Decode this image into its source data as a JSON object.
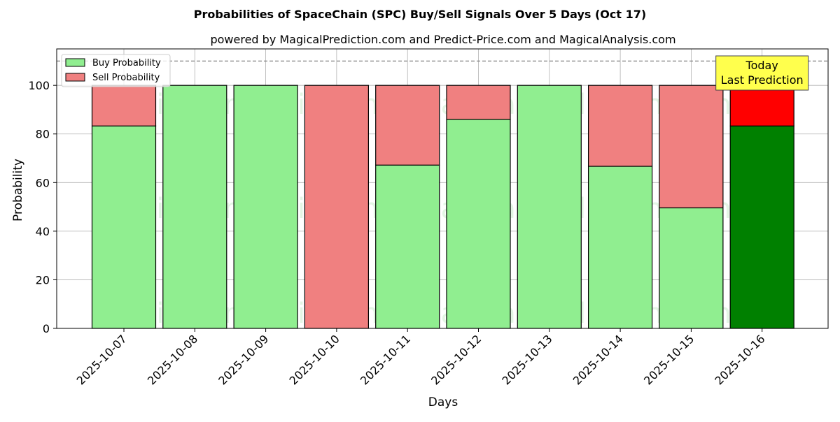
{
  "chart_data": {
    "type": "bar",
    "stacked": true,
    "title": "Probabilities of SpaceChain (SPC) Buy/Sell Signals Over 5 Days (Oct 17)",
    "subtitle": "powered by MagicalPrediction.com and Predict-Price.com and MagicalAnalysis.com",
    "xlabel": "Days",
    "ylabel": "Probability",
    "ylim": [
      0,
      115
    ],
    "yticks": [
      0,
      20,
      40,
      60,
      80,
      100
    ],
    "reference_line": 110,
    "grid": true,
    "legend_position": "top-left",
    "categories": [
      "2025-10-07",
      "2025-10-08",
      "2025-10-09",
      "2025-10-10",
      "2025-10-11",
      "2025-10-12",
      "2025-10-13",
      "2025-10-14",
      "2025-10-15",
      "2025-10-16"
    ],
    "series": [
      {
        "name": "Buy Probability",
        "color": "#90ee90",
        "values": [
          83.3,
          100,
          100,
          0,
          67.2,
          86.0,
          100,
          66.7,
          49.6,
          83.3
        ]
      },
      {
        "name": "Sell Probability",
        "color": "#f08080",
        "values": [
          16.7,
          0,
          0,
          100,
          32.8,
          14.0,
          0,
          33.3,
          50.4,
          16.7
        ]
      }
    ],
    "highlight": {
      "index": 9,
      "buy_color": "#008000",
      "sell_color": "#ff0000"
    },
    "annotation": {
      "lines": [
        "Today",
        "Last Prediction"
      ],
      "background": "#ffff4d"
    },
    "watermarks": [
      "MagicalAnalysis.com",
      "MagicalPrediction.com",
      "MagicalAnalysis.com",
      "MagicalPrediction.com",
      "MagicalAnalysis.com",
      "MagicalPrediction.com"
    ]
  }
}
